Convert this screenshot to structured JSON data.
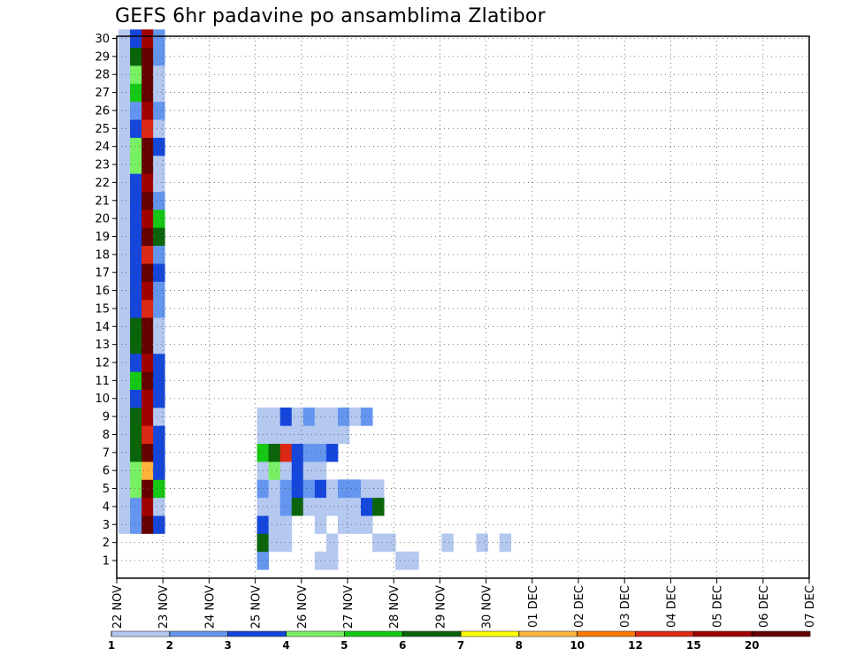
{
  "chart_data": {
    "type": "heatmap",
    "title": "GEFS 6hr padavine po ansamblima Zlatibor",
    "x_tick_labels": [
      "22 NOV",
      "23 NOV",
      "24 NOV",
      "25 NOV",
      "26 NOV",
      "27 NOV",
      "28 NOV",
      "29 NOV",
      "30 NOV",
      "01 DEC",
      "02 DEC",
      "03 DEC",
      "04 DEC",
      "05 DEC",
      "06 DEC",
      "07 DEC"
    ],
    "y_tick_labels": [
      "1",
      "2",
      "3",
      "4",
      "5",
      "6",
      "7",
      "8",
      "9",
      "10",
      "11",
      "12",
      "13",
      "14",
      "15",
      "16",
      "17",
      "18",
      "19",
      "20",
      "21",
      "22",
      "23",
      "24",
      "25",
      "26",
      "27",
      "28",
      "29",
      "30"
    ],
    "x_step_hours": 6,
    "grid": "dotted",
    "colorbar": {
      "levels": [
        1,
        2,
        3,
        4,
        5,
        6,
        7,
        8,
        10,
        12,
        15,
        20
      ],
      "labels": [
        "1",
        "2",
        "3",
        "4",
        "5",
        "6",
        "7",
        "8",
        "10",
        "12",
        "15",
        "20"
      ],
      "colors": [
        "#b4c8f0",
        "#6496f0",
        "#1446dc",
        "#78f064",
        "#14c814",
        "#0a640a",
        "#ffff00",
        "#ffb43c",
        "#ff7800",
        "#dc2814",
        "#a00000",
        "#640000"
      ]
    },
    "cells": [
      [
        3,
        0,
        1
      ],
      [
        3,
        1,
        2
      ],
      [
        3,
        2,
        12
      ],
      [
        3,
        3,
        3
      ],
      [
        4,
        0,
        1
      ],
      [
        4,
        1,
        2
      ],
      [
        4,
        2,
        11
      ],
      [
        4,
        3,
        1
      ],
      [
        5,
        0,
        1
      ],
      [
        5,
        1,
        4
      ],
      [
        5,
        2,
        12
      ],
      [
        5,
        3,
        5
      ],
      [
        6,
        0,
        1
      ],
      [
        6,
        1,
        4
      ],
      [
        6,
        2,
        8
      ],
      [
        6,
        3,
        3
      ],
      [
        7,
        0,
        1
      ],
      [
        7,
        1,
        6
      ],
      [
        7,
        2,
        12
      ],
      [
        7,
        3,
        3
      ],
      [
        8,
        0,
        1
      ],
      [
        8,
        1,
        6
      ],
      [
        8,
        2,
        10
      ],
      [
        8,
        3,
        3
      ],
      [
        9,
        0,
        1
      ],
      [
        9,
        1,
        6
      ],
      [
        9,
        2,
        11
      ],
      [
        9,
        3,
        1
      ],
      [
        10,
        0,
        1
      ],
      [
        10,
        1,
        3
      ],
      [
        10,
        2,
        11
      ],
      [
        10,
        3,
        3
      ],
      [
        11,
        0,
        1
      ],
      [
        11,
        1,
        5
      ],
      [
        11,
        2,
        12
      ],
      [
        11,
        3,
        3
      ],
      [
        12,
        0,
        1
      ],
      [
        12,
        1,
        3
      ],
      [
        12,
        2,
        11
      ],
      [
        12,
        3,
        3
      ],
      [
        13,
        0,
        1
      ],
      [
        13,
        1,
        6
      ],
      [
        13,
        2,
        12
      ],
      [
        13,
        3,
        1
      ],
      [
        14,
        0,
        1
      ],
      [
        14,
        1,
        6
      ],
      [
        14,
        2,
        12
      ],
      [
        14,
        3,
        1
      ],
      [
        15,
        0,
        1
      ],
      [
        15,
        1,
        3
      ],
      [
        15,
        2,
        10
      ],
      [
        15,
        3,
        2
      ],
      [
        16,
        0,
        1
      ],
      [
        16,
        1,
        3
      ],
      [
        16,
        2,
        11
      ],
      [
        16,
        3,
        2
      ],
      [
        17,
        0,
        1
      ],
      [
        17,
        1,
        3
      ],
      [
        17,
        2,
        12
      ],
      [
        17,
        3,
        3
      ],
      [
        18,
        0,
        1
      ],
      [
        18,
        1,
        3
      ],
      [
        18,
        2,
        10
      ],
      [
        18,
        3,
        2
      ],
      [
        19,
        0,
        1
      ],
      [
        19,
        1,
        3
      ],
      [
        19,
        2,
        12
      ],
      [
        19,
        3,
        6
      ],
      [
        20,
        0,
        1
      ],
      [
        20,
        1,
        3
      ],
      [
        20,
        2,
        11
      ],
      [
        20,
        3,
        5
      ],
      [
        21,
        0,
        1
      ],
      [
        21,
        1,
        3
      ],
      [
        21,
        2,
        12
      ],
      [
        21,
        3,
        2
      ],
      [
        22,
        0,
        1
      ],
      [
        22,
        1,
        3
      ],
      [
        22,
        2,
        11
      ],
      [
        22,
        3,
        1
      ],
      [
        23,
        0,
        1
      ],
      [
        23,
        1,
        4
      ],
      [
        23,
        2,
        12
      ],
      [
        23,
        3,
        1
      ],
      [
        24,
        0,
        1
      ],
      [
        24,
        1,
        4
      ],
      [
        24,
        2,
        12
      ],
      [
        24,
        3,
        3
      ],
      [
        25,
        0,
        1
      ],
      [
        25,
        1,
        3
      ],
      [
        25,
        2,
        10
      ],
      [
        25,
        3,
        1
      ],
      [
        26,
        0,
        1
      ],
      [
        26,
        1,
        2
      ],
      [
        26,
        2,
        11
      ],
      [
        26,
        3,
        2
      ],
      [
        27,
        0,
        1
      ],
      [
        27,
        1,
        5
      ],
      [
        27,
        2,
        12
      ],
      [
        27,
        3,
        1
      ],
      [
        28,
        0,
        1
      ],
      [
        28,
        1,
        4
      ],
      [
        28,
        2,
        12
      ],
      [
        28,
        3,
        1
      ],
      [
        29,
        0,
        1
      ],
      [
        29,
        1,
        6
      ],
      [
        29,
        2,
        12
      ],
      [
        29,
        3,
        2
      ],
      [
        30,
        0,
        1
      ],
      [
        30,
        1,
        3
      ],
      [
        30,
        2,
        11
      ],
      [
        30,
        3,
        2
      ],
      [
        1,
        12,
        2
      ],
      [
        1,
        17,
        1
      ],
      [
        1,
        18,
        1
      ],
      [
        1,
        24,
        1
      ],
      [
        1,
        25,
        1
      ],
      [
        2,
        12,
        6
      ],
      [
        2,
        13,
        1
      ],
      [
        2,
        14,
        1
      ],
      [
        2,
        18,
        1
      ],
      [
        2,
        22,
        1
      ],
      [
        2,
        23,
        1
      ],
      [
        2,
        28,
        1
      ],
      [
        2,
        31,
        1
      ],
      [
        2,
        33,
        1
      ],
      [
        3,
        12,
        3
      ],
      [
        3,
        13,
        1
      ],
      [
        3,
        14,
        1
      ],
      [
        3,
        17,
        1
      ],
      [
        3,
        19,
        1
      ],
      [
        3,
        20,
        1
      ],
      [
        3,
        21,
        1
      ],
      [
        4,
        12,
        1
      ],
      [
        4,
        13,
        1
      ],
      [
        4,
        14,
        2
      ],
      [
        4,
        15,
        6
      ],
      [
        4,
        16,
        1
      ],
      [
        4,
        17,
        1
      ],
      [
        4,
        18,
        1
      ],
      [
        4,
        19,
        1
      ],
      [
        4,
        20,
        1
      ],
      [
        4,
        21,
        3
      ],
      [
        4,
        22,
        6
      ],
      [
        5,
        12,
        2
      ],
      [
        5,
        13,
        1
      ],
      [
        5,
        14,
        2
      ],
      [
        5,
        15,
        3
      ],
      [
        5,
        16,
        2
      ],
      [
        5,
        17,
        3
      ],
      [
        5,
        18,
        1
      ],
      [
        5,
        19,
        2
      ],
      [
        5,
        20,
        2
      ],
      [
        5,
        21,
        1
      ],
      [
        5,
        22,
        1
      ],
      [
        6,
        12,
        1
      ],
      [
        6,
        13,
        4
      ],
      [
        6,
        14,
        1
      ],
      [
        6,
        15,
        3
      ],
      [
        6,
        16,
        1
      ],
      [
        6,
        17,
        1
      ],
      [
        7,
        12,
        5
      ],
      [
        7,
        13,
        6
      ],
      [
        7,
        14,
        10
      ],
      [
        7,
        15,
        3
      ],
      [
        7,
        16,
        2
      ],
      [
        7,
        17,
        2
      ],
      [
        7,
        18,
        3
      ],
      [
        8,
        12,
        1
      ],
      [
        8,
        13,
        1
      ],
      [
        8,
        14,
        1
      ],
      [
        8,
        15,
        1
      ],
      [
        8,
        16,
        1
      ],
      [
        8,
        17,
        1
      ],
      [
        8,
        18,
        1
      ],
      [
        8,
        19,
        1
      ],
      [
        9,
        12,
        1
      ],
      [
        9,
        13,
        1
      ],
      [
        9,
        14,
        3
      ],
      [
        9,
        15,
        1
      ],
      [
        9,
        16,
        2
      ],
      [
        9,
        17,
        1
      ],
      [
        9,
        18,
        1
      ],
      [
        9,
        19,
        2
      ],
      [
        9,
        20,
        1
      ],
      [
        9,
        21,
        2
      ]
    ]
  }
}
